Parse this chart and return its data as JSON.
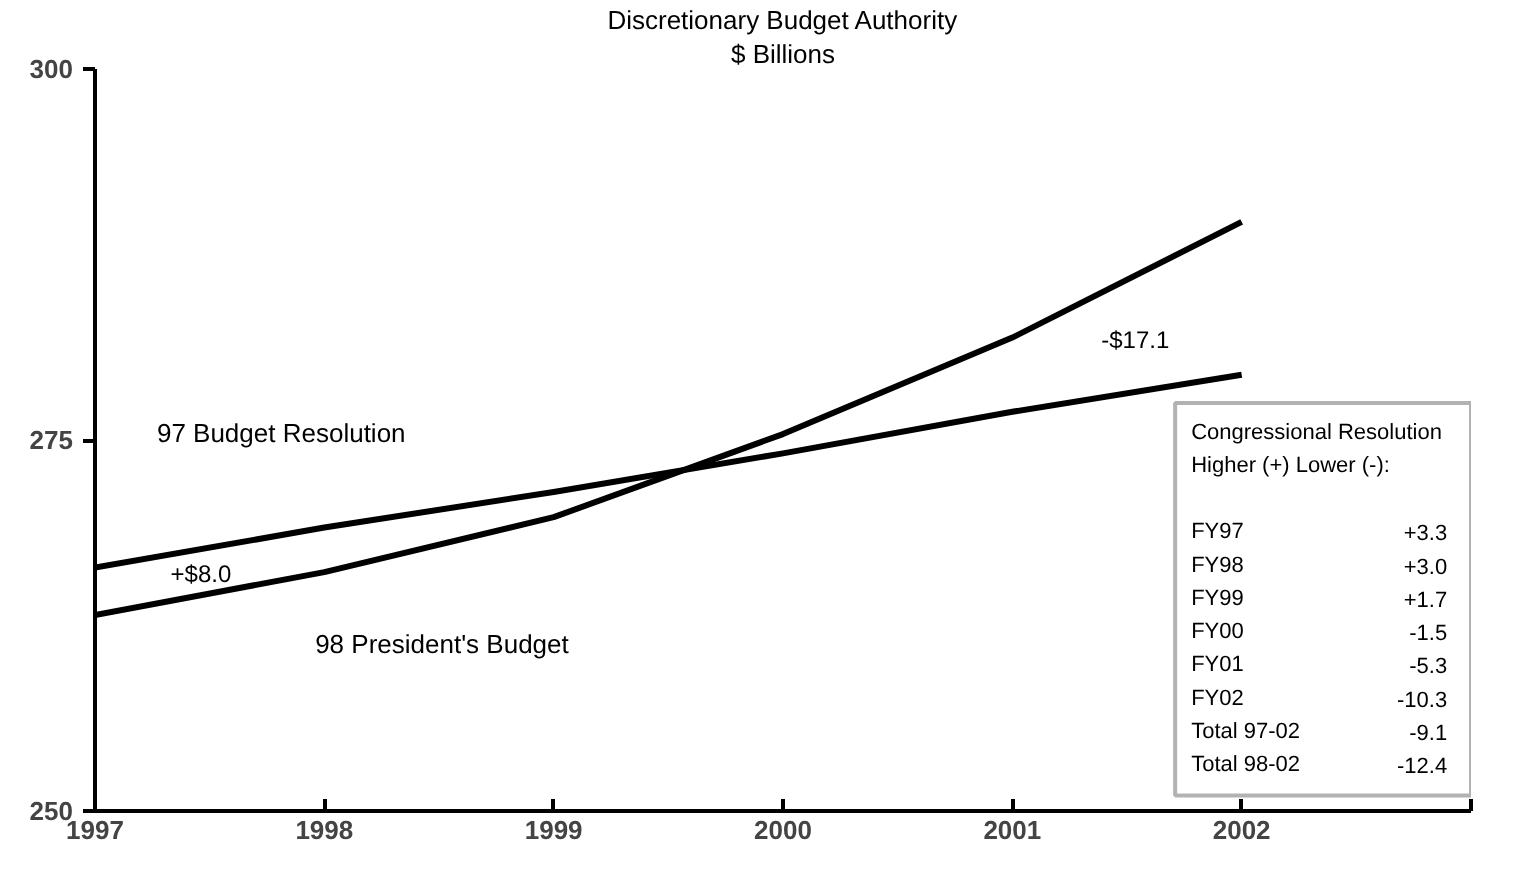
{
  "chart_data": {
    "type": "line",
    "title": "Discretionary Budget Authority",
    "subtitle": "$ Billions",
    "x": [
      1997,
      1998,
      1999,
      2000,
      2001,
      2002
    ],
    "series": [
      {
        "name": "97 Budget Resolution",
        "color": "#000000",
        "values": [
          266.4,
          269.1,
          271.5,
          274.1,
          276.9,
          279.4
        ]
      },
      {
        "name": "98 President's Budget",
        "color": "#000000",
        "values": [
          263.2,
          266.1,
          269.8,
          275.4,
          281.9,
          289.7
        ]
      }
    ],
    "xlim": [
      1997,
      2003
    ],
    "ylim": [
      250,
      300
    ],
    "xticks": [
      1997,
      1998,
      1999,
      2000,
      2001,
      2002,
      {
        "value": 2003,
        "label": null
      }
    ],
    "yticks": [
      250,
      275,
      300
    ],
    "grid": false,
    "marker": "none",
    "line_style": "solid",
    "annotations": [
      "+$8.0",
      "-$17.1",
      "Congressional Resolution",
      "Higher (+) Lower (-):",
      "FY97\t+3.3",
      "FY98\t+3.0",
      "FY99\t+1.7",
      "FY00\t-1.5",
      "FY01\t-5.3",
      "FY02\t-10.3",
      "Total 97-02\t-9.1",
      "Total 98-02\t-12.4"
    ]
  }
}
